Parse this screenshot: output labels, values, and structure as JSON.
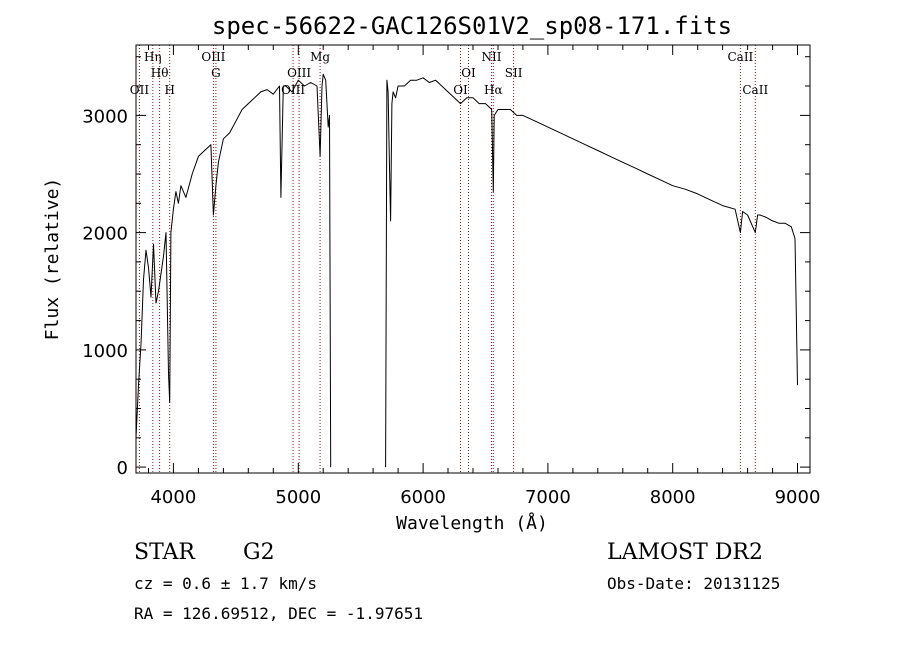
{
  "chart_data": {
    "type": "line",
    "title": "spec-56622-GAC126S01V2_sp08-171.fits",
    "xlabel": "Wavelength (Å)",
    "ylabel": "Flux (relative)",
    "xlim": [
      3700,
      9100
    ],
    "ylim": [
      -50,
      3600
    ],
    "x_ticks": [
      4000,
      5000,
      6000,
      7000,
      8000,
      9000
    ],
    "y_ticks": [
      0,
      1000,
      2000,
      3000
    ],
    "grid": false,
    "line_color": "#000000",
    "marker_color": "#8b1a1a",
    "series": [
      {
        "x": [
          3700,
          3720,
          3740,
          3760,
          3780,
          3800,
          3820,
          3840,
          3860,
          3880,
          3900,
          3920,
          3940,
          3960,
          3970,
          3980,
          4000,
          4020,
          4040,
          4060,
          4080,
          4100,
          4150,
          4200,
          4250,
          4300,
          4320,
          4340,
          4360,
          4400,
          4450,
          4500,
          4550,
          4600,
          4650,
          4700,
          4750,
          4800,
          4850,
          4861,
          4880,
          4900,
          4950,
          5000,
          5050,
          5100,
          5150,
          5175,
          5190,
          5200,
          5220,
          5240,
          5250,
          5260
        ],
        "y": [
          250,
          700,
          1050,
          1600,
          1850,
          1700,
          1450,
          1900,
          1400,
          1500,
          1650,
          1800,
          2000,
          800,
          550,
          2000,
          2200,
          2350,
          2250,
          2400,
          2350,
          2300,
          2500,
          2650,
          2700,
          2750,
          2150,
          2400,
          2600,
          2800,
          2850,
          2950,
          3050,
          3100,
          3150,
          3200,
          3220,
          3180,
          3250,
          2300,
          3250,
          3250,
          3200,
          3300,
          3250,
          3280,
          3250,
          2650,
          3250,
          3350,
          3300,
          2900,
          3000,
          0
        ]
      },
      {
        "x": [
          5700,
          5710,
          5720,
          5730,
          5740,
          5750,
          5760,
          5780,
          5800,
          5850,
          5900,
          5950,
          6000,
          6050,
          6100,
          6150,
          6200,
          6250,
          6300,
          6350,
          6400,
          6450,
          6500,
          6550,
          6563,
          6570,
          6600,
          6650,
          6700,
          6750,
          6800,
          6900,
          7000,
          7100,
          7200,
          7300,
          7400,
          7500,
          7600,
          7700,
          7800,
          7900,
          8000,
          8100,
          8200,
          8300,
          8400,
          8500,
          8542,
          8560,
          8600,
          8662,
          8680,
          8700,
          8750,
          8800,
          8850,
          8900,
          8950,
          8980,
          9000
        ],
        "y": [
          0,
          3300,
          3200,
          2600,
          2100,
          3100,
          3200,
          3150,
          3250,
          3250,
          3300,
          3300,
          3320,
          3280,
          3300,
          3250,
          3200,
          3150,
          3100,
          3150,
          3150,
          3100,
          3100,
          3050,
          2350,
          3000,
          3050,
          3050,
          3050,
          3000,
          3000,
          2950,
          2900,
          2850,
          2800,
          2750,
          2700,
          2650,
          2600,
          2550,
          2500,
          2450,
          2400,
          2370,
          2330,
          2280,
          2230,
          2200,
          2000,
          2180,
          2150,
          2000,
          2150,
          2150,
          2130,
          2100,
          2080,
          2080,
          2050,
          1950,
          700
        ]
      }
    ],
    "line_markers": [
      {
        "label": "OII",
        "x": 3727,
        "row": 3
      },
      {
        "label": "Hη",
        "x": 3835,
        "row": 0
      },
      {
        "label": "Hθ",
        "x": 3889,
        "row": 1
      },
      {
        "label": "H",
        "x": 3970,
        "row": 3
      },
      {
        "label": "OIII",
        "x": 4320,
        "row": 0
      },
      {
        "label": "G",
        "x": 4340,
        "row": 1
      },
      {
        "label": "OIII",
        "x": 5007,
        "row": 1
      },
      {
        "label": "OIII",
        "x": 4959,
        "row": 3
      },
      {
        "label": "Mg",
        "x": 5175,
        "row": 0
      },
      {
        "label": "OI",
        "x": 6300,
        "row": 3
      },
      {
        "label": "OI",
        "x": 6364,
        "row": 1
      },
      {
        "label": "NII",
        "x": 6548,
        "row": 0
      },
      {
        "label": "Hα",
        "x": 6563,
        "row": 3
      },
      {
        "label": "SII",
        "x": 6725,
        "row": 1
      },
      {
        "label": "CaII",
        "x": 8542,
        "row": 0
      },
      {
        "label": "CaII",
        "x": 8662,
        "row": 3
      }
    ]
  },
  "info": {
    "object_class": "STAR",
    "subclass": "G2",
    "survey": "LAMOST DR2",
    "redshift": "cz = 0.6 ± 1.7 km/s",
    "obs_date": "Obs-Date: 20131125",
    "coords": "RA = 126.69512, DEC =  -1.97651"
  }
}
